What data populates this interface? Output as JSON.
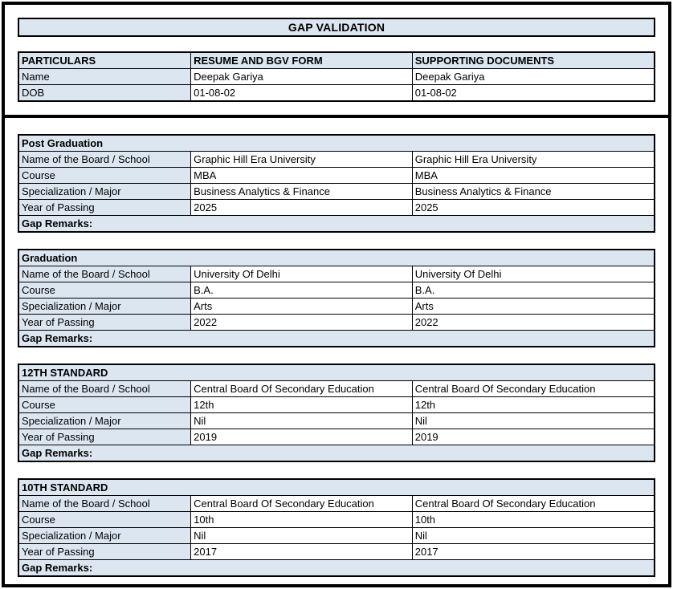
{
  "page": {
    "title": "GAP VALIDATION"
  },
  "colors": {
    "cell_fill": "#dce6f1",
    "border": "#000000",
    "text": "#000000",
    "background": "#ffffff"
  },
  "particulars_table": {
    "headers": [
      "PARTICULARS",
      "RESUME AND BGV FORM",
      "SUPPORTING DOCUMENTS"
    ],
    "rows": [
      {
        "label": "Name",
        "resume": "Deepak Gariya",
        "supporting": "Deepak Gariya"
      },
      {
        "label": "DOB",
        "resume": "01-08-02",
        "supporting": "01-08-02"
      }
    ]
  },
  "sections": [
    {
      "title": "Post Graduation",
      "rows": [
        {
          "label": "Name of the Board / School",
          "resume": "Graphic Hill Era University",
          "supporting": "Graphic Hill Era University"
        },
        {
          "label": "Course",
          "resume": "MBA",
          "supporting": "MBA"
        },
        {
          "label": "Specialization / Major",
          "resume": "Business Analytics & Finance",
          "supporting": "Business Analytics & Finance"
        },
        {
          "label": "Year of Passing",
          "resume": "2025",
          "supporting": "2025"
        }
      ],
      "gap_remarks": "Gap Remarks:"
    },
    {
      "title": "Graduation",
      "rows": [
        {
          "label": "Name of the Board / School",
          "resume": "University Of Delhi",
          "supporting": "University Of Delhi"
        },
        {
          "label": "Course",
          "resume": "B.A.",
          "supporting": "B.A."
        },
        {
          "label": "Specialization / Major",
          "resume": "Arts",
          "supporting": "Arts"
        },
        {
          "label": "Year of Passing",
          "resume": "2022",
          "supporting": "2022"
        }
      ],
      "gap_remarks": "Gap Remarks:"
    },
    {
      "title": "12TH STANDARD",
      "rows": [
        {
          "label": "Name of the Board / School",
          "resume": "Central Board Of Secondary Education",
          "supporting": "Central Board Of Secondary Education"
        },
        {
          "label": "Course",
          "resume": "12th",
          "supporting": "12th"
        },
        {
          "label": "Specialization / Major",
          "resume": "Nil",
          "supporting": "Nil"
        },
        {
          "label": "Year of Passing",
          "resume": "2019",
          "supporting": "2019"
        }
      ],
      "gap_remarks": "Gap Remarks:"
    },
    {
      "title": "10TH STANDARD",
      "rows": [
        {
          "label": "Name of the Board / School",
          "resume": "Central Board Of Secondary Education",
          "supporting": "Central Board Of Secondary Education"
        },
        {
          "label": "Course",
          "resume": "10th",
          "supporting": "10th"
        },
        {
          "label": "Specialization / Major",
          "resume": "Nil",
          "supporting": "Nil"
        },
        {
          "label": "Year of Passing",
          "resume": "2017",
          "supporting": "2017"
        }
      ],
      "gap_remarks": "Gap Remarks:"
    }
  ]
}
